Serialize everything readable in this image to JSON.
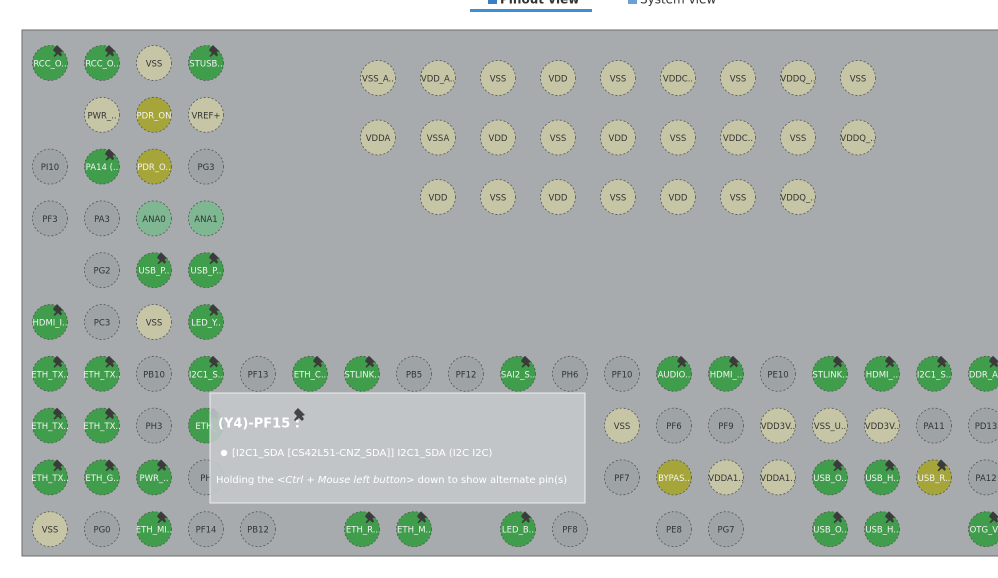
{
  "tabs": [
    {
      "label": "Pinout view",
      "active": true
    },
    {
      "label": "System view",
      "active": false
    }
  ],
  "colors": {
    "mapped": "#3f9d4c",
    "free": "#9ea3a6",
    "power": "#c6c6a6",
    "reset": "#a5a53a",
    "analog": "#7fb792"
  },
  "power_block": [
    [
      {
        "label": "VSS_A..",
        "type": "power"
      },
      {
        "label": "VDD_A..",
        "type": "power"
      },
      {
        "label": "VSS",
        "type": "power"
      },
      {
        "label": "VDD",
        "type": "power"
      },
      {
        "label": "VSS",
        "type": "power"
      },
      {
        "label": "VDDC..",
        "type": "power"
      },
      {
        "label": "VSS",
        "type": "power"
      },
      {
        "label": "VDDQ_..",
        "type": "power"
      },
      {
        "label": "VSS",
        "type": "power"
      }
    ],
    [
      {
        "label": "VDDA",
        "type": "power"
      },
      {
        "label": "VSSA",
        "type": "power"
      },
      {
        "label": "VDD",
        "type": "power"
      },
      {
        "label": "VSS",
        "type": "power"
      },
      {
        "label": "VDD",
        "type": "power"
      },
      {
        "label": "VSS",
        "type": "power"
      },
      {
        "label": "VDDC..",
        "type": "power"
      },
      {
        "label": "VSS",
        "type": "power"
      },
      {
        "label": "VDDQ_..",
        "type": "power"
      }
    ],
    [
      null,
      {
        "label": "VDD",
        "type": "power"
      },
      {
        "label": "VSS",
        "type": "power"
      },
      {
        "label": "VDD",
        "type": "power"
      },
      {
        "label": "VSS",
        "type": "power"
      },
      {
        "label": "VDD",
        "type": "power"
      },
      {
        "label": "VSS",
        "type": "power"
      },
      {
        "label": "VDDQ_..",
        "type": "power"
      }
    ]
  ],
  "grid": [
    [
      {
        "label": "RCC_O..",
        "type": "mapped",
        "locked": true
      },
      {
        "label": "RCC_O..",
        "type": "mapped",
        "locked": true
      },
      {
        "label": "VSS",
        "type": "power"
      },
      {
        "label": "STUSB..",
        "type": "mapped",
        "locked": true
      }
    ],
    [
      null,
      {
        "label": "PWR_..",
        "type": "power"
      },
      {
        "label": "PDR_ON",
        "type": "reset"
      },
      {
        "label": "VREF+",
        "type": "power"
      }
    ],
    [
      {
        "label": "PI10",
        "type": "free"
      },
      {
        "label": "PA14 (..",
        "type": "mapped",
        "locked": true
      },
      {
        "label": "PDR_O..",
        "type": "reset"
      },
      {
        "label": "PG3",
        "type": "free"
      }
    ],
    [
      {
        "label": "PF3",
        "type": "free"
      },
      {
        "label": "PA3",
        "type": "free"
      },
      {
        "label": "ANA0",
        "type": "analog"
      },
      {
        "label": "ANA1",
        "type": "analog"
      }
    ],
    [
      null,
      {
        "label": "PG2",
        "type": "free"
      },
      {
        "label": "USB_P..",
        "type": "mapped",
        "locked": true
      },
      {
        "label": "USB_P..",
        "type": "mapped",
        "locked": true
      }
    ],
    [
      {
        "label": "HDMI_I..",
        "type": "mapped",
        "locked": true
      },
      {
        "label": "PC3",
        "type": "free"
      },
      {
        "label": "VSS",
        "type": "power"
      },
      {
        "label": "LED_Y..",
        "type": "mapped",
        "locked": true
      }
    ],
    [
      {
        "label": "ETH_TX..",
        "type": "mapped",
        "locked": true
      },
      {
        "label": "ETH_TX..",
        "type": "mapped",
        "locked": true
      },
      {
        "label": "PB10",
        "type": "free"
      },
      {
        "label": "I2C1_S..",
        "type": "mapped",
        "locked": true
      },
      {
        "label": "PF13",
        "type": "free"
      },
      {
        "label": "ETH_C..",
        "type": "mapped",
        "locked": true
      },
      {
        "label": "STLINK..",
        "type": "mapped",
        "locked": true
      },
      {
        "label": "PB5",
        "type": "free"
      },
      {
        "label": "PF12",
        "type": "free"
      },
      {
        "label": "SAI2_S..",
        "type": "mapped",
        "locked": true
      },
      {
        "label": "PH6",
        "type": "free"
      },
      {
        "label": "PF10",
        "type": "free"
      },
      {
        "label": "AUDIO..",
        "type": "mapped",
        "locked": true
      },
      {
        "label": "HDMI_..",
        "type": "mapped",
        "locked": true
      },
      {
        "label": "PE10",
        "type": "free"
      },
      {
        "label": "STLINK..",
        "type": "mapped",
        "locked": true
      },
      {
        "label": "HDMI_..",
        "type": "mapped",
        "locked": true
      },
      {
        "label": "I2C1_S..",
        "type": "mapped",
        "locked": true
      },
      {
        "label": "DDR_A..",
        "type": "mapped",
        "locked": true
      }
    ],
    [
      {
        "label": "ETH_TX..",
        "type": "mapped",
        "locked": true
      },
      {
        "label": "ETH_TX..",
        "type": "mapped",
        "locked": true
      },
      {
        "label": "PH3",
        "type": "free"
      },
      {
        "label": "ETH_",
        "type": "mapped",
        "locked": true
      },
      null,
      null,
      null,
      null,
      null,
      null,
      null,
      {
        "label": "VSS",
        "type": "power"
      },
      {
        "label": "PF6",
        "type": "free"
      },
      {
        "label": "PF9",
        "type": "free"
      },
      {
        "label": "VDD3V..",
        "type": "power"
      },
      {
        "label": "VSS_U..",
        "type": "power"
      },
      {
        "label": "VDD3V..",
        "type": "power"
      },
      {
        "label": "PA11",
        "type": "free"
      },
      {
        "label": "PD13",
        "type": "free"
      }
    ],
    [
      {
        "label": "ETH_TX..",
        "type": "mapped",
        "locked": true
      },
      {
        "label": "ETH_G..",
        "type": "mapped",
        "locked": true
      },
      {
        "label": "PWR_..",
        "type": "mapped",
        "locked": true
      },
      {
        "label": "PH",
        "type": "free"
      },
      null,
      null,
      null,
      null,
      null,
      null,
      null,
      {
        "label": "PF7",
        "type": "free"
      },
      {
        "label": "BYPAS..",
        "type": "reset"
      },
      {
        "label": "VDDA1..",
        "type": "power"
      },
      {
        "label": "VDDA1..",
        "type": "power"
      },
      {
        "label": "USB_O..",
        "type": "mapped",
        "locked": true
      },
      {
        "label": "USB_H..",
        "type": "mapped",
        "locked": true
      },
      {
        "label": "USB_R..",
        "type": "reset",
        "locked": true
      },
      {
        "label": "PA12",
        "type": "free"
      }
    ],
    [
      {
        "label": "VSS",
        "type": "power"
      },
      {
        "label": "PG0",
        "type": "free"
      },
      {
        "label": "ETH_MI..",
        "type": "mapped",
        "locked": true
      },
      {
        "label": "PF14",
        "type": "free"
      },
      {
        "label": "PB12",
        "type": "free"
      },
      null,
      {
        "label": "ETH_R..",
        "type": "mapped",
        "locked": true
      },
      {
        "label": "ETH_M..",
        "type": "mapped",
        "locked": true
      },
      null,
      {
        "label": "LED_B..",
        "type": "mapped",
        "locked": true
      },
      {
        "label": "PF8",
        "type": "free"
      },
      null,
      {
        "label": "PE8",
        "type": "free"
      },
      {
        "label": "PG7",
        "type": "free"
      },
      null,
      {
        "label": "USB_O..",
        "type": "mapped",
        "locked": true
      },
      {
        "label": "USB_H..",
        "type": "mapped",
        "locked": true
      },
      null,
      {
        "label": "OTG_V..",
        "type": "mapped",
        "locked": true
      }
    ]
  ],
  "tooltip": {
    "title": "(Y4)-PF15 :",
    "signal": "[I2C1_SDA [CS42L51-CNZ_SDA]] I2C1_SDA (I2C I2C)",
    "hint": [
      "Holding the ",
      "<Ctrl + Mouse left button>",
      " down to show alternate pin(s)"
    ]
  }
}
